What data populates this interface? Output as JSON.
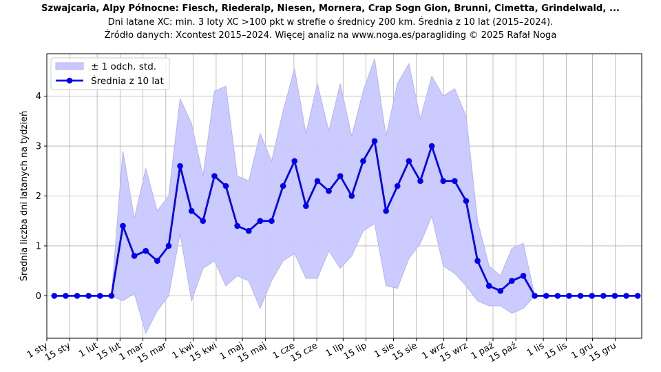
{
  "chart_data": {
    "type": "line",
    "title": "Szwajcaria, Alpy Północne: Fiesch, Riederalp, Niesen, Mornera, Crap Sogn Gion, Brunni, Cimetta, Grindelwald, ...",
    "subtitle": "Dni latane XC: min. 3 loty XC >100 pkt w strefie o średnicy 200 km. Średnia z 10 lat (2015–2024).",
    "source": "Źródło danych: Xcontest 2015–2024. Więcej analiz na www.noga.es/paragliding © 2025 Rafał Noga",
    "xlabel": "",
    "ylabel": "Średnia liczba dni latanych na tydzień",
    "ylim": [
      -0.85,
      4.85
    ],
    "xlim": [
      0,
      52
    ],
    "grid": true,
    "legend_position": "top-left",
    "legend": {
      "band_label": "± 1 odch. std.",
      "line_label": "Średnia z 10 lat"
    },
    "colors": {
      "line": "#0000ee",
      "band": "#c8c8ff",
      "band_edge": "#b4b4f0",
      "grid": "#b0b0b0"
    },
    "yticks": [
      0,
      1,
      2,
      3,
      4
    ],
    "xticks": [
      {
        "x": 0,
        "label": "1 sty"
      },
      {
        "x": 2,
        "label": "15 sty"
      },
      {
        "x": 4.4,
        "label": "1 lut"
      },
      {
        "x": 6.4,
        "label": "15 lut"
      },
      {
        "x": 8.4,
        "label": "1 mar"
      },
      {
        "x": 10.4,
        "label": "15 mar"
      },
      {
        "x": 12.8,
        "label": "1 kwi"
      },
      {
        "x": 14.8,
        "label": "15 kwi"
      },
      {
        "x": 17.1,
        "label": "1 maj"
      },
      {
        "x": 19.1,
        "label": "15 maj"
      },
      {
        "x": 21.6,
        "label": "1 cze"
      },
      {
        "x": 23.6,
        "label": "15 cze"
      },
      {
        "x": 25.9,
        "label": "1 lip"
      },
      {
        "x": 27.9,
        "label": "15 lip"
      },
      {
        "x": 30.3,
        "label": "1 sie"
      },
      {
        "x": 32.3,
        "label": "15 sie"
      },
      {
        "x": 34.7,
        "label": "1 wrz"
      },
      {
        "x": 36.7,
        "label": "15 wrz"
      },
      {
        "x": 39,
        "label": "1 paź"
      },
      {
        "x": 41,
        "label": "15 paź"
      },
      {
        "x": 43.4,
        "label": "1 lis"
      },
      {
        "x": 45.4,
        "label": "15 lis"
      },
      {
        "x": 47.7,
        "label": "1 gru"
      },
      {
        "x": 49.7,
        "label": "15 gru"
      }
    ],
    "series": [
      {
        "name": "Średnia z 10 lat",
        "x": [
          0.65,
          1.65,
          2.65,
          3.65,
          4.65,
          5.65,
          6.65,
          7.65,
          8.65,
          9.65,
          10.65,
          11.65,
          12.65,
          13.65,
          14.65,
          15.65,
          16.65,
          17.65,
          18.65,
          19.65,
          20.65,
          21.65,
          22.65,
          23.65,
          24.65,
          25.65,
          26.65,
          27.65,
          28.65,
          29.65,
          30.65,
          31.65,
          32.65,
          33.65,
          34.65,
          35.65,
          36.65,
          37.65,
          38.65,
          39.65,
          40.65,
          41.65,
          42.65,
          43.65,
          44.65,
          45.65,
          46.65,
          47.65,
          48.65,
          49.65,
          50.65,
          51.65
        ],
        "values": [
          0,
          0,
          0,
          0,
          0,
          0,
          1.4,
          0.8,
          0.9,
          0.7,
          1.0,
          2.6,
          1.7,
          1.5,
          2.4,
          2.2,
          1.4,
          1.3,
          1.5,
          1.5,
          2.2,
          2.7,
          1.8,
          2.3,
          2.1,
          2.4,
          2.0,
          2.7,
          3.1,
          1.7,
          2.2,
          2.7,
          2.3,
          3.0,
          2.3,
          2.3,
          1.9,
          0.7,
          0.2,
          0.1,
          0.3,
          0.4,
          0,
          0,
          0,
          0,
          0,
          0,
          0,
          0,
          0,
          0
        ]
      },
      {
        "name": "± 1 odch. std.",
        "x": [
          0.65,
          1.65,
          2.65,
          3.65,
          4.65,
          5.65,
          6.65,
          7.65,
          8.65,
          9.65,
          10.65,
          11.65,
          12.65,
          13.65,
          14.65,
          15.65,
          16.65,
          17.65,
          18.65,
          19.65,
          20.65,
          21.65,
          22.65,
          23.65,
          24.65,
          25.65,
          26.65,
          27.65,
          28.65,
          29.65,
          30.65,
          31.65,
          32.65,
          33.65,
          34.65,
          35.65,
          36.65,
          37.65,
          38.65,
          39.65,
          40.65,
          41.65,
          42.65,
          43.65,
          44.65,
          45.65,
          46.65,
          47.65,
          48.65,
          49.65,
          50.65,
          51.65
        ],
        "upper": [
          0,
          0,
          0,
          0,
          0,
          0,
          2.9,
          1.55,
          2.55,
          1.7,
          2.0,
          3.95,
          3.45,
          2.4,
          4.1,
          4.2,
          2.4,
          2.3,
          3.25,
          2.7,
          3.7,
          4.55,
          3.25,
          4.25,
          3.3,
          4.25,
          3.2,
          4.1,
          4.75,
          3.2,
          4.25,
          4.65,
          3.55,
          4.4,
          4.0,
          4.15,
          3.6,
          1.5,
          0.6,
          0.4,
          0.95,
          1.05,
          0,
          0,
          0,
          0,
          0,
          0,
          0,
          0,
          0,
          0
        ],
        "lower": [
          0,
          0,
          0,
          0,
          0,
          0,
          -0.1,
          0.05,
          -0.75,
          -0.3,
          0.0,
          1.25,
          -0.1,
          0.55,
          0.7,
          0.2,
          0.4,
          0.3,
          -0.25,
          0.3,
          0.7,
          0.85,
          0.35,
          0.35,
          0.9,
          0.55,
          0.8,
          1.3,
          1.45,
          0.2,
          0.15,
          0.75,
          1.05,
          1.6,
          0.6,
          0.45,
          0.2,
          -0.1,
          -0.2,
          -0.2,
          -0.35,
          -0.25,
          0,
          0,
          0,
          0,
          0,
          0,
          0,
          0,
          0,
          0
        ]
      }
    ]
  }
}
